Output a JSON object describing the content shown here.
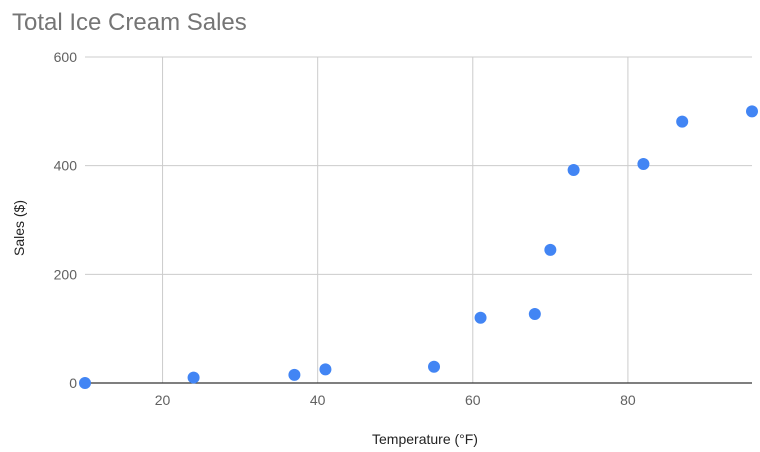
{
  "chart_data": {
    "type": "scatter",
    "title": "Total Ice Cream Sales",
    "xlabel": "Temperature (°F)",
    "ylabel": "Sales ($)",
    "xlim": [
      10,
      96
    ],
    "ylim": [
      0,
      600
    ],
    "x_ticks": [
      20,
      40,
      60,
      80
    ],
    "y_ticks": [
      0,
      200,
      400,
      600
    ],
    "grid": true,
    "legend": "none",
    "colors": {
      "point": "#4285f4",
      "grid": "#cccccc",
      "baseline": "#333333"
    },
    "series": [
      {
        "points": [
          {
            "x": 10,
            "y": 0
          },
          {
            "x": 24,
            "y": 10
          },
          {
            "x": 37,
            "y": 15
          },
          {
            "x": 41,
            "y": 25
          },
          {
            "x": 55,
            "y": 30
          },
          {
            "x": 61,
            "y": 120
          },
          {
            "x": 68,
            "y": 127
          },
          {
            "x": 70,
            "y": 245
          },
          {
            "x": 73,
            "y": 392
          },
          {
            "x": 82,
            "y": 403
          },
          {
            "x": 87,
            "y": 481
          },
          {
            "x": 96,
            "y": 500
          }
        ]
      }
    ]
  }
}
